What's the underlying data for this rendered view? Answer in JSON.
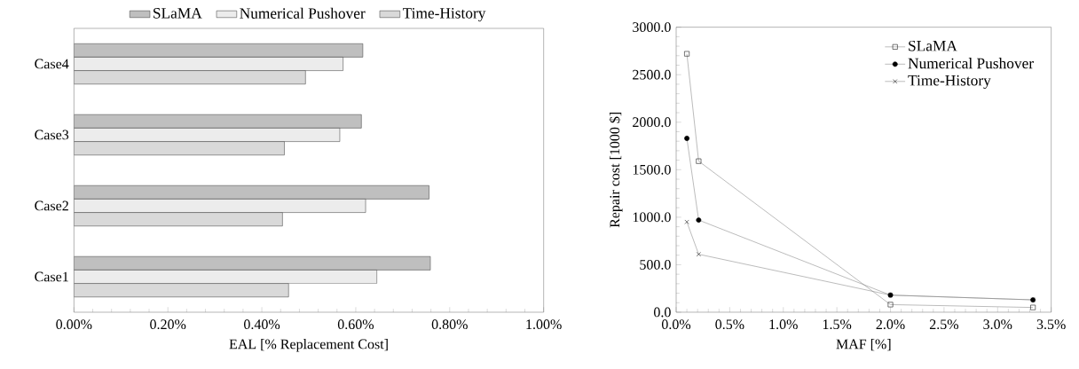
{
  "chart_data": [
    {
      "type": "bar",
      "orientation": "horizontal",
      "categories": [
        "Case4",
        "Case3",
        "Case2",
        "Case1"
      ],
      "xlabel": "EAL [% Replacement Cost]",
      "legend": "top",
      "xlim": [
        0,
        1
      ],
      "xticks": [
        {
          "value": 0,
          "label": "0.00%"
        },
        {
          "value": 0.2,
          "label": "0.20%"
        },
        {
          "value": 0.4,
          "label": "0.40%"
        },
        {
          "value": 0.6,
          "label": "0.60%"
        },
        {
          "value": 0.8,
          "label": "0.80%"
        },
        {
          "value": 1,
          "label": "1.00%"
        }
      ],
      "series": [
        {
          "name": "SLaMA",
          "color": "#bfbfbf",
          "values": [
            0.615,
            0.612,
            0.756,
            0.759
          ]
        },
        {
          "name": "Numerical Pushover",
          "color": "#ececec",
          "values": [
            0.573,
            0.566,
            0.621,
            0.645
          ]
        },
        {
          "name": "Time-History",
          "color": "#d9d9d9",
          "values": [
            0.493,
            0.448,
            0.444,
            0.457
          ]
        }
      ]
    },
    {
      "type": "line",
      "x": [
        0.1,
        0.21,
        2.0,
        3.33
      ],
      "xlabel": "MAF [%]",
      "ylabel": "Repair cost [1000 $]",
      "legend": "top right",
      "xlim": [
        0,
        3.5
      ],
      "xticks": [
        {
          "value": 0,
          "label": "0.0%"
        },
        {
          "value": 0.5,
          "label": "0.5%"
        },
        {
          "value": 1,
          "label": "1.0%"
        },
        {
          "value": 1.5,
          "label": "1.5%"
        },
        {
          "value": 2,
          "label": "2.0%"
        },
        {
          "value": 2.5,
          "label": "2.5%"
        },
        {
          "value": 3,
          "label": "3.0%"
        },
        {
          "value": 3.5,
          "label": "3.5%"
        }
      ],
      "ylim": [
        0,
        3000
      ],
      "yticks": [
        {
          "value": 0,
          "label": "0.0"
        },
        {
          "value": 500,
          "label": "500.0"
        },
        {
          "value": 1000,
          "label": "1000.0"
        },
        {
          "value": 1500,
          "label": "1500.0"
        },
        {
          "value": 2000,
          "label": "2000.0"
        },
        {
          "value": 2500,
          "label": "2500.0"
        },
        {
          "value": 3000,
          "label": "3000.0"
        }
      ],
      "series": [
        {
          "name": "SLaMA",
          "color": "#808080",
          "marker": "square",
          "values": [
            2720,
            1590,
            80,
            50
          ]
        },
        {
          "name": "Numerical Pushover",
          "color": "#808080",
          "marker": "circle",
          "values": [
            1830,
            970,
            180,
            130
          ]
        },
        {
          "name": "Time-History",
          "color": "#808080",
          "marker": "cross",
          "values": [
            950,
            610,
            180,
            130
          ]
        }
      ]
    }
  ]
}
